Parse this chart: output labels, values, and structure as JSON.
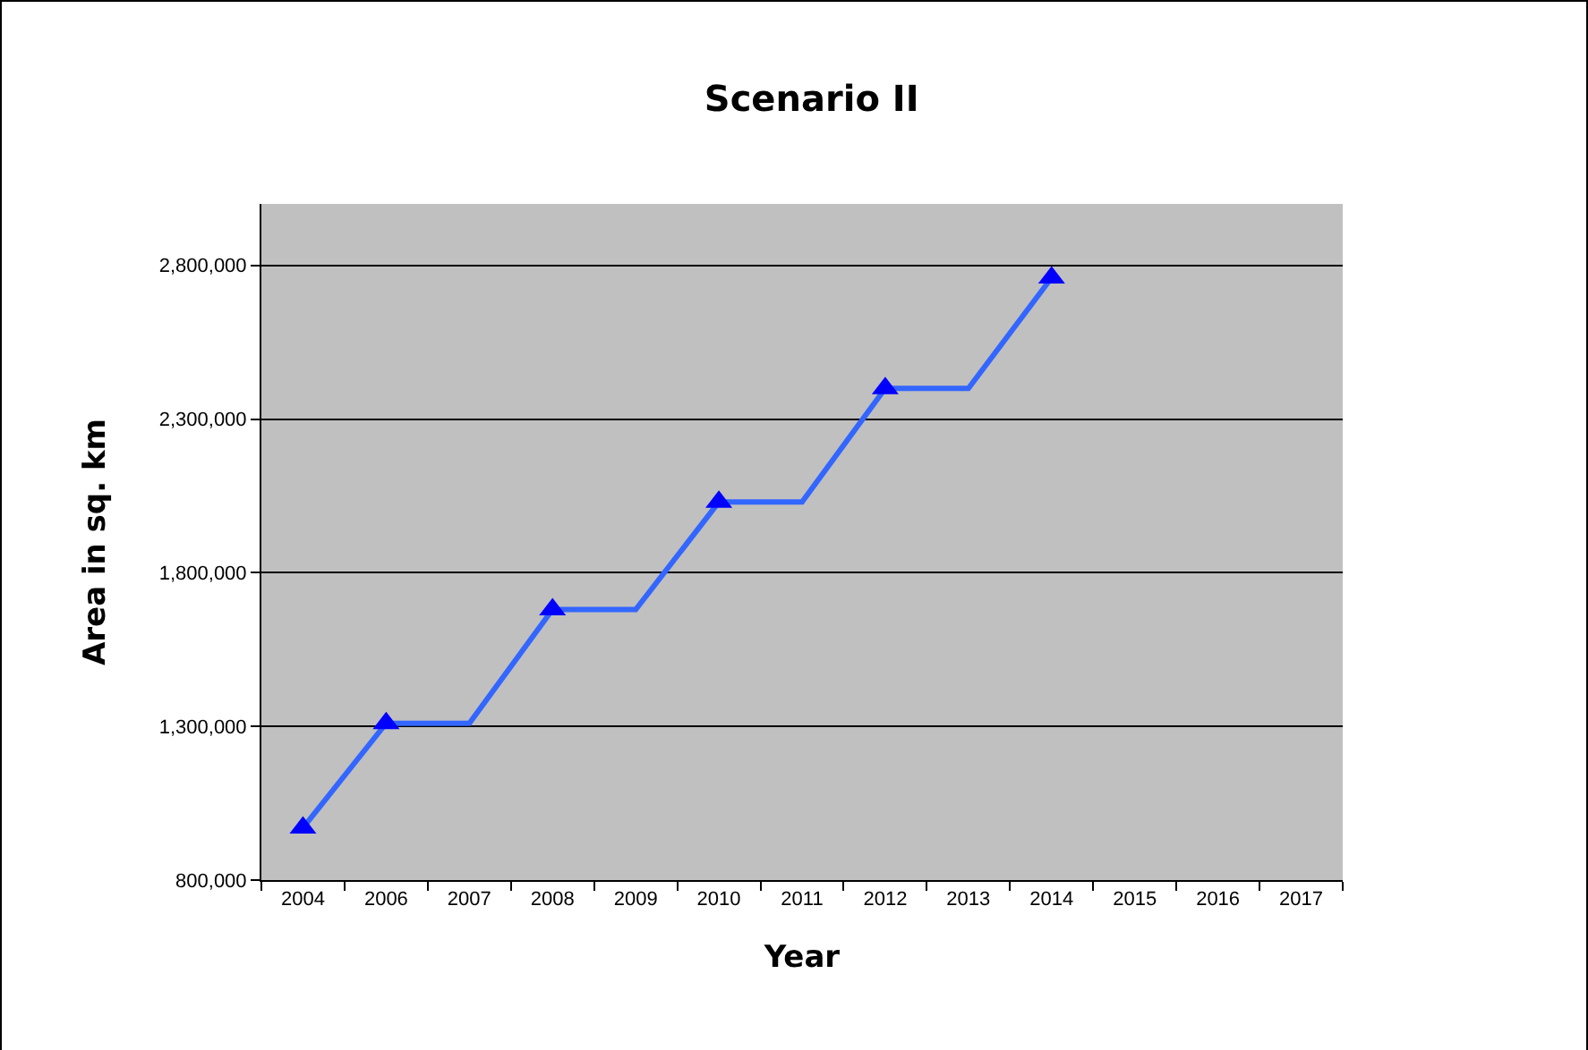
{
  "chart_data": {
    "type": "line",
    "title": "Scenario II",
    "xlabel": "Year",
    "ylabel": "Area in sq. km",
    "categories": [
      "2004",
      "2006",
      "2007",
      "2008",
      "2009",
      "2010",
      "2011",
      "2012",
      "2013",
      "2014",
      "2015",
      "2016",
      "2017"
    ],
    "series": [
      {
        "type": "line",
        "color": "#3366ff",
        "marker": "none",
        "values": [
          970000,
          1310000,
          1310000,
          1680000,
          1680000,
          2030000,
          2030000,
          2400000,
          2400000,
          2760000,
          null,
          null,
          null
        ]
      },
      {
        "type": "scatter",
        "color": "#0000ff",
        "marker": "triangle",
        "values": [
          970000,
          1310000,
          null,
          1680000,
          null,
          2030000,
          null,
          2400000,
          null,
          2760000,
          null,
          null,
          null
        ]
      }
    ],
    "ylim": [
      800000,
      3000000
    ],
    "yticks": [
      {
        "value": 800000,
        "label": "800,000"
      },
      {
        "value": 1300000,
        "label": "1,300,000"
      },
      {
        "value": 1800000,
        "label": "1,800,000"
      },
      {
        "value": 2300000,
        "label": "2,300,000"
      },
      {
        "value": 2800000,
        "label": "2,800,000"
      }
    ],
    "grid": "y"
  }
}
